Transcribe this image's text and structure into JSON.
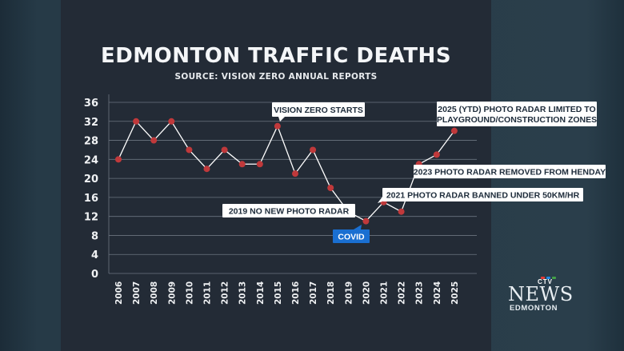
{
  "chart_data": {
    "type": "line",
    "title": "EDMONTON TRAFFIC DEATHS",
    "subtitle": "SOURCE: VISION ZERO ANNUAL REPORTS",
    "x": [
      "2006",
      "2007",
      "2008",
      "2009",
      "2010",
      "2011",
      "2012",
      "2013",
      "2014",
      "2015",
      "2016",
      "2017",
      "2018",
      "2019",
      "2020",
      "2021",
      "2022",
      "2023",
      "2024",
      "2025"
    ],
    "series": [
      {
        "values": [
          24,
          32,
          28,
          32,
          26,
          22,
          26,
          23,
          23,
          31,
          21,
          26,
          18,
          13,
          11,
          15,
          13,
          23,
          25,
          30
        ]
      }
    ],
    "yticks": [
      "36",
      "32",
      "28",
      "24",
      "20",
      "16",
      "12",
      "8",
      "4",
      "0"
    ],
    "ylim": [
      0,
      36
    ],
    "grid": true,
    "colors": {
      "line": "#ffffff",
      "point": "#c0393b",
      "grid": "#6b7580",
      "callout": "#ffffff",
      "callout_highlight": "#1a6fd1"
    },
    "annotations": [
      {
        "label": "VISION ZERO STARTS",
        "x": "2015",
        "highlight": false
      },
      {
        "label": "2025 (YTD) PHOTO RADAR LIMITED TO",
        "label2": "PLAYGROUND/CONSTRUCTION ZONES",
        "x": "2025",
        "highlight": false
      },
      {
        "label": "2023 PHOTO RADAR REMOVED FROM HENDAY",
        "x": "2023",
        "highlight": false
      },
      {
        "label": "2021 PHOTO RADAR BANNED UNDER 50KM/HR",
        "x": "2021",
        "highlight": false
      },
      {
        "label": "2019 NO NEW PHOTO RADAR",
        "x": "2019",
        "highlight": false
      },
      {
        "label": "COVID",
        "x": "2020",
        "highlight": true
      }
    ]
  },
  "logo": {
    "ctv": "CTV",
    "news": "NEWS",
    "city": "EDMONTON"
  }
}
